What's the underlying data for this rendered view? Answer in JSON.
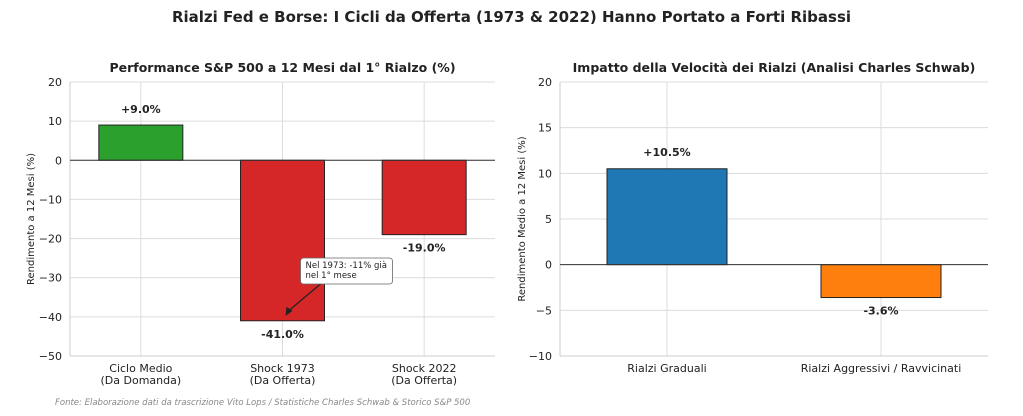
{
  "title": "Rialzi Fed e Borse: I Cicli da Offerta (1973 & 2022) Hanno Portato a Forti Ribassi",
  "source": "Fonte: Elaborazione dati da trascrizione Vito Lops / Statistiche Charles Schwab & Storico S&P 500",
  "chart_data": [
    {
      "type": "bar",
      "title": "Performance S&P 500 a 12 Mesi dal 1° Rialzo (%)",
      "ylabel": "Rendimento a 12 Mesi (%)",
      "xlabel": "",
      "categories": [
        "Ciclo Medio\n(Da Domanda)",
        "Shock 1973\n(Da Offerta)",
        "Shock 2022\n(Da Offerta)"
      ],
      "values": [
        9.0,
        -41.0,
        -19.0
      ],
      "data_labels": [
        "+9.0%",
        "-41.0%",
        "-19.0%"
      ],
      "colors": [
        "#2ca02c",
        "#d62728",
        "#d62728"
      ],
      "ylim": [
        -50,
        20
      ],
      "yticks": [
        -50,
        -40,
        -30,
        -20,
        -10,
        0,
        10,
        20
      ],
      "ytick_labels": [
        "−50",
        "−40",
        "−30",
        "−20",
        "−10",
        "0",
        "10",
        "20"
      ],
      "grid": true,
      "annotation": {
        "text": [
          "Nel 1973: -11% già",
          "nel 1° mese"
        ],
        "category_index": 1,
        "y": -40
      }
    },
    {
      "type": "bar",
      "title": "Impatto della Velocità dei Rialzi (Analisi Charles Schwab)",
      "ylabel": "Rendimento Medio a 12 Mesi (%)",
      "xlabel": "",
      "categories": [
        "Rialzi Graduali",
        "Rialzi Aggressivi / Ravvicinati"
      ],
      "values": [
        10.5,
        -3.6
      ],
      "data_labels": [
        "+10.5%",
        "-3.6%"
      ],
      "colors": [
        "#1f77b4",
        "#ff7f0e"
      ],
      "ylim": [
        -10,
        20
      ],
      "yticks": [
        -10,
        -5,
        0,
        5,
        10,
        15,
        20
      ],
      "ytick_labels": [
        "−10",
        "−5",
        "0",
        "5",
        "10",
        "15",
        "20"
      ],
      "grid": true
    }
  ]
}
